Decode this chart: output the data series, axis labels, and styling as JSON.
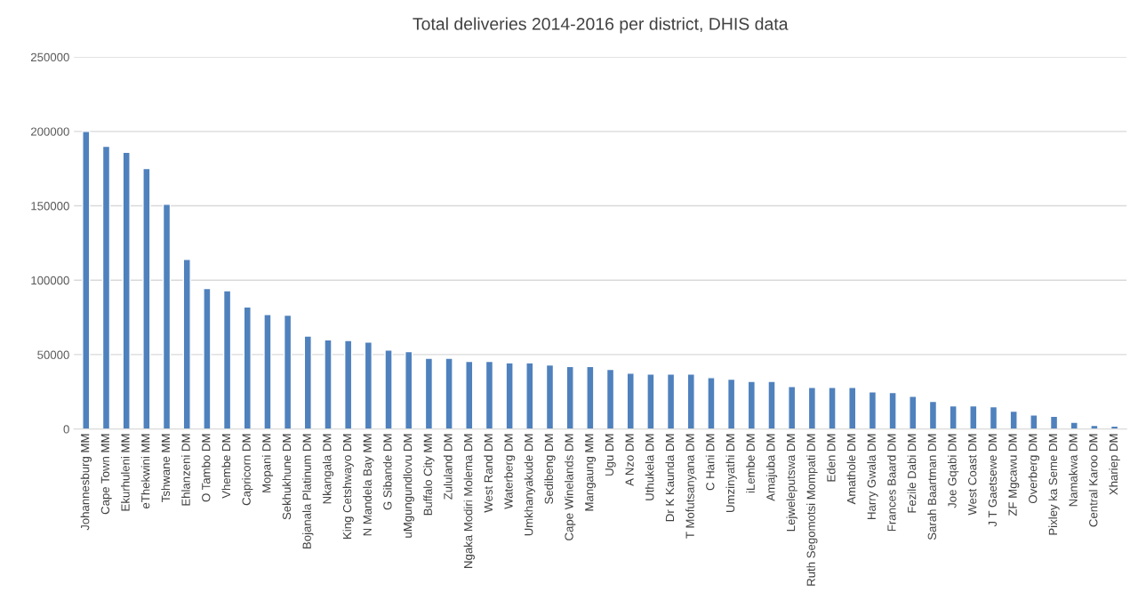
{
  "chart_data": {
    "type": "bar",
    "title": "Total deliveries 2014-2016 per district, DHIS data",
    "categories": [
      "Johannesburg MM",
      "Cape Town MM",
      "Ekurhuleni MM",
      "eThekwini MM",
      "Tshwane MM",
      "Ehlanzeni DM",
      "O Tambo DM",
      "Vhembe DM",
      "Capricorn DM",
      "Mopani DM",
      "Sekhukhune DM",
      "Bojanala Platinum DM",
      "Nkangala DM",
      "King Cetshwayo DM",
      "N Mandela Bay MM",
      "G Sibande DM",
      "uMgungundlovu DM",
      "Buffalo City MM",
      "Zululand DM",
      "Ngaka Modiri Molema DM",
      "West Rand DM",
      "Waterberg DM",
      "Umkhanyakude DM",
      "Sedibeng DM",
      "Cape Winelands DM",
      "Mangaung MM",
      "Ugu DM",
      "A Nzo DM",
      "Uthukela DM",
      "Dr K Kaunda DM",
      "T Mofutsanyana DM",
      "C Hani DM",
      "Umzinyathi DM",
      "iLembe DM",
      "Amajuba DM",
      "Lejweleputswa DM",
      "Ruth Segomotsi Mompati DM",
      "Eden DM",
      "Amathole DM",
      "Harry Gwala DM",
      "Frances Baard DM",
      "Fezile Dabi DM",
      "Sarah Baartman DM",
      "Joe Gqabi DM",
      "West Coast DM",
      "J T Gaetsewe DM",
      "ZF Mgcawu DM",
      "Overberg DM",
      "Pixley ka Seme DM",
      "Namakwa DM",
      "Central Karoo DM",
      "Xhariep DM"
    ],
    "values": [
      200000,
      190000,
      186000,
      175000,
      151000,
      114000,
      94500,
      93000,
      82000,
      77000,
      76500,
      62500,
      60000,
      59500,
      58500,
      53000,
      52000,
      47500,
      47500,
      45500,
      45500,
      44500,
      44500,
      43000,
      42000,
      42000,
      40000,
      37500,
      37000,
      37000,
      37000,
      34500,
      33500,
      32000,
      32000,
      28500,
      28000,
      28000,
      28000,
      25000,
      24500,
      22000,
      18500,
      15500,
      15500,
      15000,
      12000,
      9500,
      8500,
      4500,
      2500,
      2000
    ],
    "color": "#4f81bd",
    "ylim": [
      0,
      250000
    ],
    "yticks": [
      0,
      50000,
      100000,
      150000,
      200000,
      250000
    ],
    "grid": "y",
    "legend": false
  }
}
